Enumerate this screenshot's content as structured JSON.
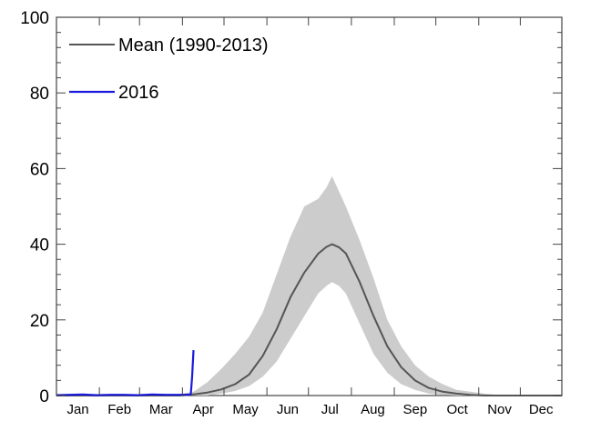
{
  "chart_data": {
    "type": "line",
    "title": "",
    "xlabel": "",
    "ylabel": "",
    "ylim": [
      0,
      100
    ],
    "xlim": [
      1,
      366
    ],
    "y_ticks": [
      0,
      20,
      40,
      60,
      80,
      100
    ],
    "y_tick_labels": [
      "0",
      "20",
      "40",
      "60",
      "80",
      "100"
    ],
    "month_labels": [
      "Jan",
      "Feb",
      "Mar",
      "Apr",
      "May",
      "Jun",
      "Jul",
      "Aug",
      "Sep",
      "Oct",
      "Nov",
      "Dec"
    ],
    "month_start_days": [
      1,
      32,
      61,
      92,
      122,
      153,
      183,
      214,
      245,
      275,
      306,
      336
    ],
    "legend": {
      "placement": "top-left",
      "entries": [
        {
          "label": "Mean (1990-2013)",
          "color": "#555555"
        },
        {
          "label": "2016",
          "color": "#1a1adc"
        }
      ]
    },
    "series": [
      {
        "name": "Mean (1990-2013)",
        "color": "#555555",
        "x": [
          1,
          60,
          90,
          100,
          110,
          120,
          130,
          140,
          150,
          160,
          170,
          180,
          190,
          196,
          200,
          205,
          210,
          220,
          230,
          240,
          250,
          260,
          270,
          280,
          290,
          300,
          310,
          320,
          366
        ],
        "y": [
          0,
          0,
          0,
          0.3,
          0.8,
          1.6,
          3,
          5.5,
          10.5,
          17.5,
          26,
          32.5,
          37.5,
          39.3,
          40,
          39.2,
          37.6,
          30,
          21,
          13,
          7.5,
          4,
          2,
          1,
          0.5,
          0.2,
          0,
          0,
          0
        ]
      },
      {
        "name": "2016",
        "color": "#1a1adc",
        "x": [
          1,
          10,
          20,
          30,
          40,
          50,
          60,
          70,
          80,
          90,
          98,
          99,
          100
        ],
        "y": [
          0.1,
          0.2,
          0.3,
          0.1,
          0.2,
          0.2,
          0.1,
          0.3,
          0.2,
          0.2,
          0.3,
          5,
          12
        ]
      }
    ],
    "band": {
      "color": "#cccccc",
      "x": [
        90,
        100,
        110,
        120,
        130,
        140,
        150,
        160,
        170,
        180,
        190,
        196,
        200,
        205,
        210,
        220,
        230,
        240,
        250,
        260,
        270,
        280,
        290,
        300,
        310,
        320,
        340
      ],
      "upper": [
        0.3,
        1,
        3.5,
        7,
        11,
        15.5,
        22,
        32,
        42,
        50,
        52,
        55,
        58,
        54,
        50,
        41,
        31,
        20,
        13,
        8,
        5,
        3,
        1.5,
        1,
        0.5,
        0.2,
        0
      ],
      "lower": [
        0,
        0,
        0,
        0.5,
        1.2,
        2.5,
        5,
        9,
        15,
        21,
        27,
        29,
        30,
        29,
        27,
        19,
        11,
        6,
        3,
        1.5,
        0.5,
        0.2,
        0,
        0,
        0,
        0,
        0
      ]
    }
  }
}
